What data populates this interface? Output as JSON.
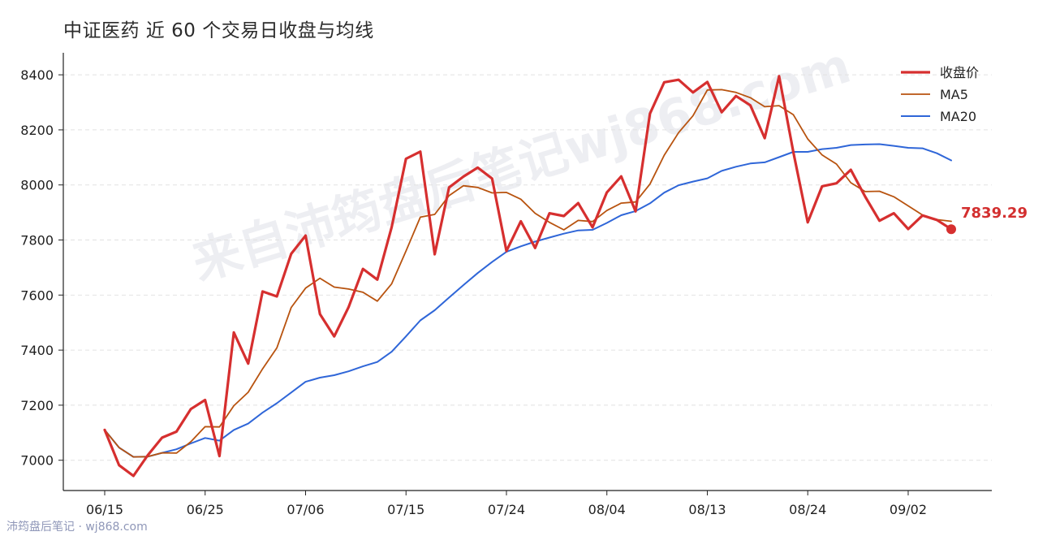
{
  "title": "中证医药 近 60 个交易日收盘与均线",
  "watermark_main": "来自沛筠盘后笔记wj868.com",
  "watermark_footer": "沛筠盘后笔记 · wj868.com",
  "colors": {
    "close": "#d62f2f",
    "ma5": "#b8530f",
    "ma20": "#2f66d8",
    "grid": "#e2e2e2",
    "axis": "#222222"
  },
  "chart_data": {
    "type": "line",
    "title": "中证医药 近 60 个交易日收盘与均线",
    "xlabel": "",
    "ylabel": "",
    "ylim": [
      6890,
      8480
    ],
    "yticks": [
      7000,
      7200,
      7400,
      7600,
      7800,
      8000,
      8200,
      8400
    ],
    "xtick_labels": [
      {
        "index": 0,
        "label": "06/15"
      },
      {
        "index": 7,
        "label": "06/25"
      },
      {
        "index": 14,
        "label": "07/06"
      },
      {
        "index": 21,
        "label": "07/15"
      },
      {
        "index": 28,
        "label": "07/24"
      },
      {
        "index": 35,
        "label": "08/04"
      },
      {
        "index": 42,
        "label": "08/13"
      },
      {
        "index": 49,
        "label": "08/24"
      },
      {
        "index": 56,
        "label": "09/02"
      }
    ],
    "grid": "horizontal-dashed",
    "legend_position": "top-right",
    "last_value_label": "7839.29",
    "series": [
      {
        "name": "收盘价",
        "values": [
          7110,
          6982,
          6943,
          7018,
          7082,
          7104,
          7186,
          7219,
          7015,
          7464,
          7351,
          7613,
          7595,
          7750,
          7816,
          7531,
          7450,
          7556,
          7695,
          7656,
          7847,
          8095,
          8121,
          7748,
          7991,
          8030,
          8063,
          8023,
          7760,
          7868,
          7771,
          7897,
          7887,
          7934,
          7846,
          7973,
          8031,
          7904,
          8259,
          8373,
          8382,
          8336,
          8374,
          8264,
          8323,
          8289,
          8170,
          8395,
          8119,
          7864,
          7995,
          8006,
          8055,
          7958,
          7870,
          7897,
          7840,
          7889,
          7873,
          7839.29
        ]
      },
      {
        "name": "MA5",
        "values": [
          7110,
          7046,
          7012,
          7013,
          7027,
          7026,
          7067,
          7122,
          7121,
          7198,
          7247,
          7332,
          7408,
          7555,
          7625,
          7661,
          7629,
          7622,
          7610,
          7578,
          7641,
          7760,
          7883,
          7893,
          7961,
          7997,
          7991,
          7971,
          7973,
          7948,
          7897,
          7864,
          7837,
          7871,
          7867,
          7907,
          7934,
          7938,
          8003,
          8108,
          8190,
          8251,
          8345,
          8346,
          8336,
          8317,
          8284,
          8288,
          8255,
          8167,
          8109,
          8076,
          8008,
          7976,
          7977,
          7957,
          7924,
          7891,
          7874,
          7868
        ]
      },
      {
        "name": "MA20",
        "values": [
          7110,
          7046,
          7012,
          7013,
          7027,
          7040,
          7061,
          7081,
          7071,
          7110,
          7133,
          7173,
          7207,
          7246,
          7285,
          7300,
          7309,
          7323,
          7341,
          7357,
          7394,
          7450,
          7508,
          7545,
          7591,
          7636,
          7680,
          7720,
          7757,
          7777,
          7794,
          7809,
          7823,
          7835,
          7837,
          7862,
          7890,
          7905,
          7933,
          7972,
          7999,
          8012,
          8024,
          8051,
          8066,
          8078,
          8082,
          8101,
          8120,
          8120,
          8130,
          8135,
          8145,
          8147,
          8148,
          8142,
          8135,
          8133,
          8115,
          8089
        ]
      }
    ]
  }
}
